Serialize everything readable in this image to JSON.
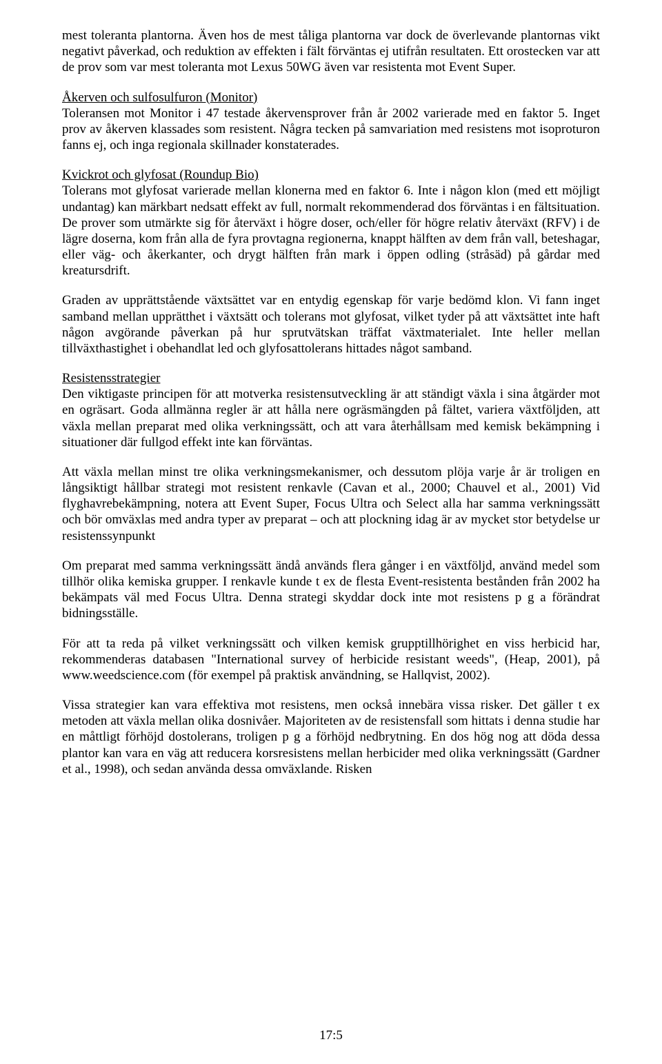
{
  "para1": "mest toleranta plantorna. Även hos de mest tåliga plantorna var dock de överlevande plantornas vikt negativt påverkad, och reduktion av effekten i fält förväntas ej utifrån resultaten. Ett orostecken var att de prov som var mest toleranta mot Lexus 50WG även var resistenta mot Event Super.",
  "sec1": {
    "title": "Åkerven och sulfosulfuron (Monitor)",
    "body": "Toleransen mot Monitor i 47 testade åkervensprover från år 2002 varierade med en faktor 5. Inget prov av åkerven klassades som resistent. Några tecken på samvariation med resistens mot isoproturon fanns ej, och inga regionala skillnader konstaterades."
  },
  "sec2": {
    "title": "Kvickrot och glyfosat (Roundup Bio)",
    "body": "Tolerans mot glyfosat varierade mellan klonerna med en faktor 6. Inte i någon klon (med ett möjligt undantag) kan märkbart nedsatt effekt av full, normalt rekommenderad dos förväntas i en fältsituation. De prover som utmärkte sig för återväxt i högre doser, och/eller för högre relativ återväxt (RFV) i de lägre doserna, kom från alla de fyra provtagna regionerna, knappt hälften av dem från vall, beteshagar, eller väg- och åkerkanter, och drygt hälften från mark i öppen odling (stråsäd) på gårdar med kreatursdrift."
  },
  "para2": "Graden av upprättstående växtsättet var en entydig egenskap för varje bedömd klon. Vi fann inget samband mellan upprätthet i växtsätt och tolerans mot glyfosat, vilket tyder på att växtsättet inte haft någon avgörande påverkan på hur sprutvätskan träffat växtmaterialet. Inte heller mellan tillväxthastighet i obehandlat led och glyfosattolerans hittades något samband.",
  "sec3": {
    "title": "Resistensstrategier",
    "body": "Den viktigaste principen för att motverka resistensutveckling är att ständigt växla i sina åtgärder mot en ogräsart. Goda allmänna regler är att hålla nere ogräsmängden på fältet, variera växtföljden, att växla mellan preparat med olika verkningssätt, och att vara återhållsam med kemisk bekämpning i situationer där fullgod effekt inte kan förväntas."
  },
  "para3": "Att växla mellan minst tre olika verkningsmekanismer, och dessutom plöja varje år är troligen en långsiktigt hållbar strategi mot resistent renkavle (Cavan et al., 2000; Chauvel et al., 2001) Vid flyghavrebekämpning, notera att Event Super, Focus Ultra och Select alla har samma verkningssätt och bör omväxlas med andra typer av preparat – och att plockning idag är av mycket stor betydelse ur resistenssynpunkt",
  "para4": "Om preparat med samma verkningssätt ändå används flera gånger i en växtföljd, använd medel som tillhör olika kemiska grupper. I renkavle kunde t ex de flesta Event-resistenta bestånden från 2002 ha bekämpats väl med Focus Ultra. Denna strategi skyddar dock inte mot resistens p g a förändrat bidningsställe.",
  "para5": "För att ta reda på vilket verkningssätt och vilken kemisk grupptillhörighet en viss herbicid har, rekommenderas databasen \"International survey of herbicide resistant weeds\", (Heap, 2001), på www.weedscience.com (för exempel på praktisk användning, se Hallqvist, 2002).",
  "para6": "Vissa strategier kan vara effektiva mot resistens, men också innebära vissa risker. Det gäller t ex metoden att växla mellan olika dosnivåer. Majoriteten av de resistensfall som hittats i denna studie har en måttligt förhöjd dostolerans, troligen p g a förhöjd nedbrytning. En dos hög nog att döda dessa plantor kan vara en väg att reducera korsresistens mellan herbicider med olika verkningssätt (Gardner et al., 1998), och sedan använda dessa omväxlande. Risken",
  "footer": "17:5"
}
